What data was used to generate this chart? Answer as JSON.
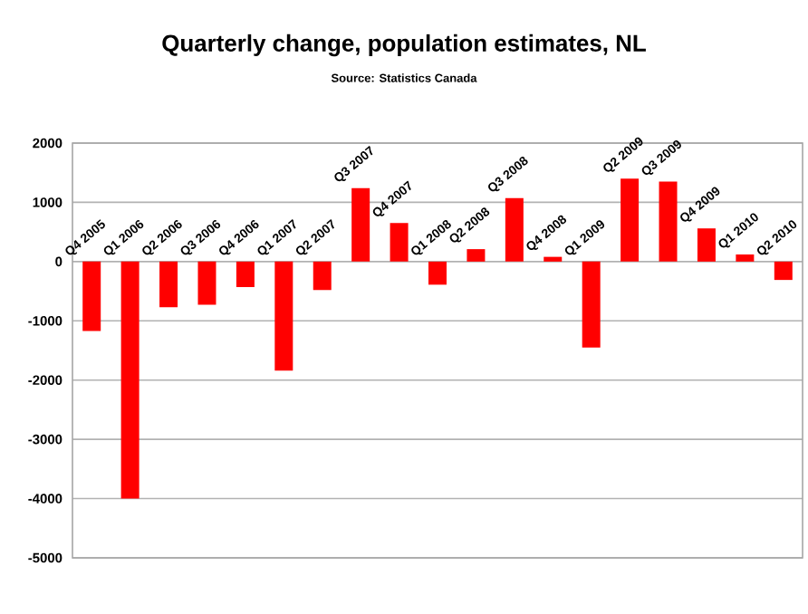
{
  "chart_data": {
    "type": "bar",
    "title": "Quarterly change, population estimates, NL",
    "subtitle": "Source: Statistics Canada",
    "categories": [
      "Q4 2005",
      "Q1 2006",
      "Q2 2006",
      "Q3 2006",
      "Q4 2006",
      "Q1 2007",
      "Q2 2007",
      "Q3 2007",
      "Q4 2007",
      "Q1 2008",
      "Q2 2008",
      "Q3 2008",
      "Q4 2008",
      "Q1 2009",
      "Q2 2009",
      "Q3 2009",
      "Q4 2009",
      "Q1 2010",
      "Q2 2010"
    ],
    "values": [
      -1170,
      -4000,
      -770,
      -730,
      -430,
      -1840,
      -480,
      1240,
      650,
      -390,
      210,
      1070,
      80,
      -1450,
      1400,
      1350,
      560,
      120,
      -310
    ],
    "color": "#ff0000",
    "ylim": [
      -5000,
      2000
    ],
    "yticks": [
      -5000,
      -4000,
      -3000,
      -2000,
      -1000,
      0,
      1000,
      2000
    ],
    "grid": "y"
  }
}
